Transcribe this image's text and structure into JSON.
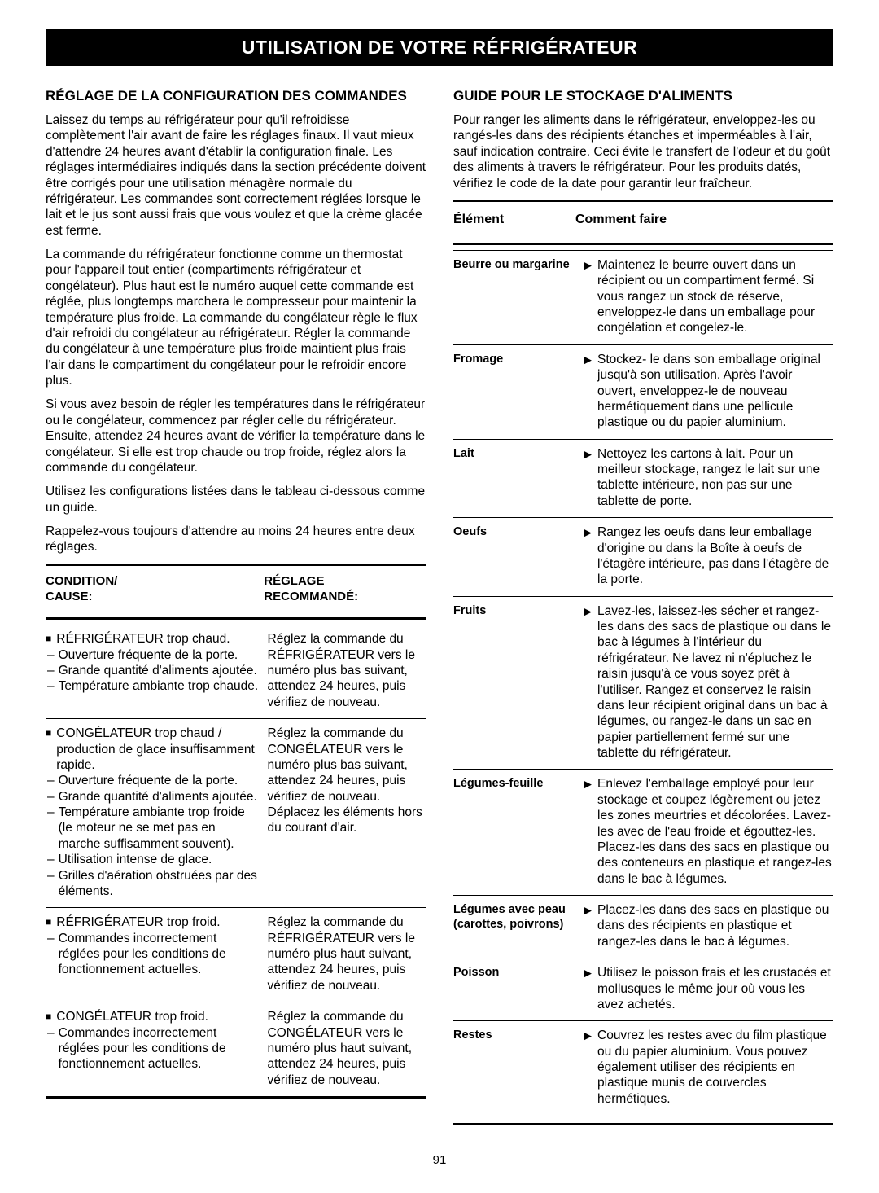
{
  "banner": "UTILISATION DE VOTRE RÉFRIGÉRATEUR",
  "page_number": "91",
  "colors": {
    "banner_bg": "#000000",
    "banner_fg": "#ffffff",
    "text": "#000000",
    "rule": "#000000"
  },
  "left": {
    "title": "RÉGLAGE DE LA CONFIGURATION DES COMMANDES",
    "p1": "Laissez du temps au réfrigérateur pour qu'il refroidisse complètement l'air avant de faire les réglages finaux. Il vaut mieux d'attendre 24 heures avant d'établir la configuration finale. Les réglages intermédiaires indiqués dans la section précédente doivent être corrigés pour une utilisation ménagère normale du réfrigérateur. Les commandes sont correctement réglées lorsque le lait et le jus sont aussi frais que vous voulez et que la crème glacée est ferme.",
    "p2": "La commande du réfrigérateur fonctionne comme un thermostat pour l'appareil tout entier (compartiments réfrigérateur et congélateur). Plus haut est le numéro auquel cette commande est réglée, plus longtemps marchera le compresseur pour maintenir la température plus froide. La commande du congélateur règle le flux d'air refroidi du congélateur au réfrigérateur. Régler la commande du congélateur à une température plus froide maintient plus frais l'air dans le compartiment du congélateur pour le refroidir encore plus.",
    "p3": "Si vous avez besoin de régler les températures dans le réfrigérateur ou le congélateur, commencez par régler celle du réfrigérateur. Ensuite, attendez 24 heures avant de vérifier la température dans le congélateur. Si elle est trop chaude ou trop froide, réglez alors la commande du congélateur.",
    "p4": "Utilisez les configurations listées dans le tableau ci-dessous comme un guide.",
    "p5": "Rappelez-vous toujours d'attendre au moins 24 heures entre deux réglages.",
    "table": {
      "head_left_l1": "CONDITION/",
      "head_left_l2": "CAUSE:",
      "head_right_l1": "RÉGLAGE",
      "head_right_l2": "RECOMMANDÉ:",
      "rows": [
        {
          "cond_main": "RÉFRIGÉRATEUR trop chaud.",
          "cond_subs": [
            "Ouverture fréquente de la porte.",
            "Grande quantité d'aliments ajoutée.",
            "Température ambiante trop chaude."
          ],
          "rec": "Réglez la commande du RÉFRIGÉRATEUR vers le numéro plus bas suivant, attendez 24 heures, puis vérifiez de nouveau."
        },
        {
          "cond_main": "CONGÉLATEUR trop chaud / production de glace insuffisamment rapide.",
          "cond_subs": [
            "Ouverture fréquente de la porte.",
            "Grande quantité d'aliments ajoutée.",
            "Température ambiante trop froide (le moteur ne se met pas en marche suffisamment souvent).",
            "Utilisation intense de glace.",
            "Grilles d'aération obstruées par des éléments."
          ],
          "rec": "Réglez la commande du CONGÉLATEUR vers le numéro plus bas suivant, attendez 24 heures, puis vérifiez de nouveau. Déplacez les éléments hors du courant d'air."
        },
        {
          "cond_main": "RÉFRIGÉRATEUR trop froid.",
          "cond_subs": [
            "Commandes incorrectement réglées pour les conditions de fonctionnement actuelles."
          ],
          "rec": "Réglez la commande du RÉFRIGÉRATEUR vers le numéro plus haut suivant, attendez 24 heures, puis vérifiez de nouveau."
        },
        {
          "cond_main": "CONGÉLATEUR trop froid.",
          "cond_subs": [
            "Commandes incorrectement réglées pour les conditions de fonctionnement actuelles."
          ],
          "rec": "Réglez la commande du CONGÉLATEUR vers le numéro plus haut suivant, attendez 24 heures, puis vérifiez de nouveau."
        }
      ]
    }
  },
  "right": {
    "title": "GUIDE POUR LE STOCKAGE D'ALIMENTS",
    "intro": "Pour ranger les aliments dans le réfrigérateur, enveloppez-les ou rangés-les dans des récipients étanches et imperméables à l'air, sauf indication contraire. Ceci évite le transfert de l'odeur et du goût des aliments à travers le réfrigérateur. Pour les produits datés, vérifiez le code de la date pour garantir leur fraîcheur.",
    "head_item": "Élément",
    "head_how": "Comment faire",
    "rows": [
      {
        "item": "Beurre ou margarine",
        "how": "Maintenez le beurre ouvert dans un récipient ou un compartiment fermé. Si vous rangez un stock de réserve, enveloppez-le dans un emballage pour congélation et congelez-le."
      },
      {
        "item": "Fromage",
        "how": "Stockez- le dans son emballage original jusqu'à son utilisation. Après l'avoir ouvert, enveloppez-le de nouveau hermétiquement dans une pellicule plastique ou du papier aluminium."
      },
      {
        "item": "Lait",
        "how": "Nettoyez les cartons à lait. Pour un meilleur stockage, rangez le lait sur une tablette intérieure, non pas sur une tablette de porte."
      },
      {
        "item": "Oeufs",
        "how": "Rangez les oeufs dans leur emballage d'origine ou dans la Boîte à oeufs de l'étagère intérieure, pas dans l'étagère de la porte."
      },
      {
        "item": "Fruits",
        "how": "Lavez-les, laissez-les sécher et rangez-les dans des sacs de plastique ou dans le bac à légumes à l'intérieur du réfrigérateur. Ne lavez ni n'épluchez le raisin jusqu'à ce vous soyez prêt à l'utiliser. Rangez et conservez le raisin dans leur récipient original dans un bac à légumes, ou rangez-le dans un sac en papier partiellement fermé sur une tablette du réfrigérateur."
      },
      {
        "item": "Légumes-feuille",
        "how": "Enlevez l'emballage employé pour leur stockage et coupez légèrement ou jetez les zones meurtries et décolorées. Lavez-les avec de l'eau froide et égouttez-les. Placez-les dans des sacs en plastique ou des conteneurs en plastique et rangez-les dans le bac à légumes."
      },
      {
        "item": "Légumes avec peau (carottes, poivrons)",
        "how": "Placez-les dans des sacs en plastique ou dans des récipients en plastique et rangez-les dans le bac à légumes."
      },
      {
        "item": "Poisson",
        "how": "Utilisez le poisson frais et les crustacés et mollusques le même jour où vous les avez achetés."
      },
      {
        "item": "Restes",
        "how": "Couvrez les restes avec du film plastique ou du papier aluminium. Vous pouvez également utiliser des récipients en plastique munis de couvercles hermétiques."
      }
    ]
  }
}
